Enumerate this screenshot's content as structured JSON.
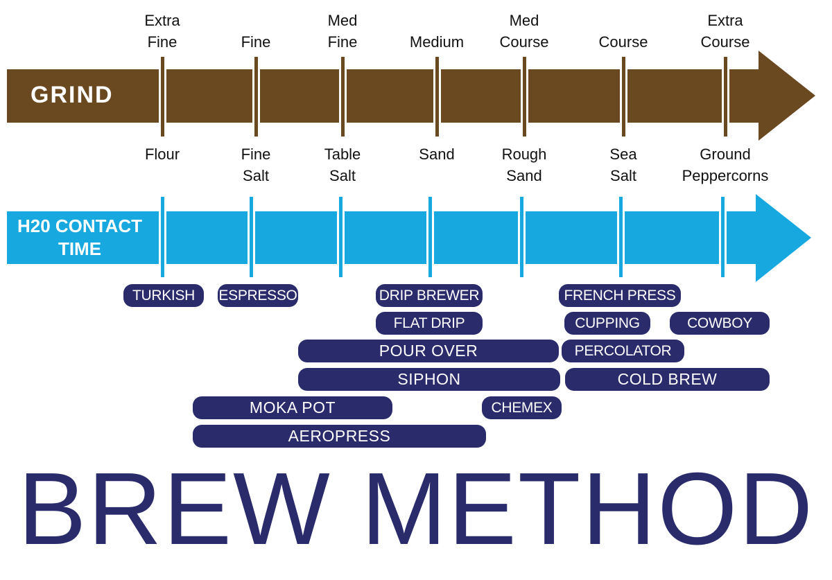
{
  "colors": {
    "grind": "#6a4820",
    "contact": "#17a8e0",
    "method": "#2a2b6b"
  },
  "grind": {
    "label": "GRIND",
    "sizes": [
      {
        "line1": "Extra",
        "line2": "Fine"
      },
      {
        "line1": "",
        "line2": "Fine"
      },
      {
        "line1": "Med",
        "line2": "Fine"
      },
      {
        "line1": "",
        "line2": "Medium"
      },
      {
        "line1": "Med",
        "line2": "Course"
      },
      {
        "line1": "",
        "line2": "Course"
      },
      {
        "line1": "Extra",
        "line2": "Course"
      }
    ],
    "comparisons": [
      {
        "line1": "Flour",
        "line2": ""
      },
      {
        "line1": "Fine",
        "line2": "Salt"
      },
      {
        "line1": "Table",
        "line2": "Salt"
      },
      {
        "line1": "Sand",
        "line2": ""
      },
      {
        "line1": "Rough",
        "line2": "Sand"
      },
      {
        "line1": "Sea",
        "line2": "Salt"
      },
      {
        "line1": "Ground",
        "line2": "Peppercorns"
      }
    ]
  },
  "contact": {
    "line1": "H20 CONTACT",
    "line2": "TIME"
  },
  "methods": [
    "TURKISH",
    "ESPRESSO",
    "DRIP BREWER",
    "FLAT DRIP",
    "FRENCH PRESS",
    "CUPPING",
    "COWBOY",
    "POUR OVER",
    "PERCOLATOR",
    "SIPHON",
    "COLD BREW",
    "MOKA POT",
    "CHEMEX",
    "AEROPRESS"
  ],
  "title": "BREW METHOD"
}
